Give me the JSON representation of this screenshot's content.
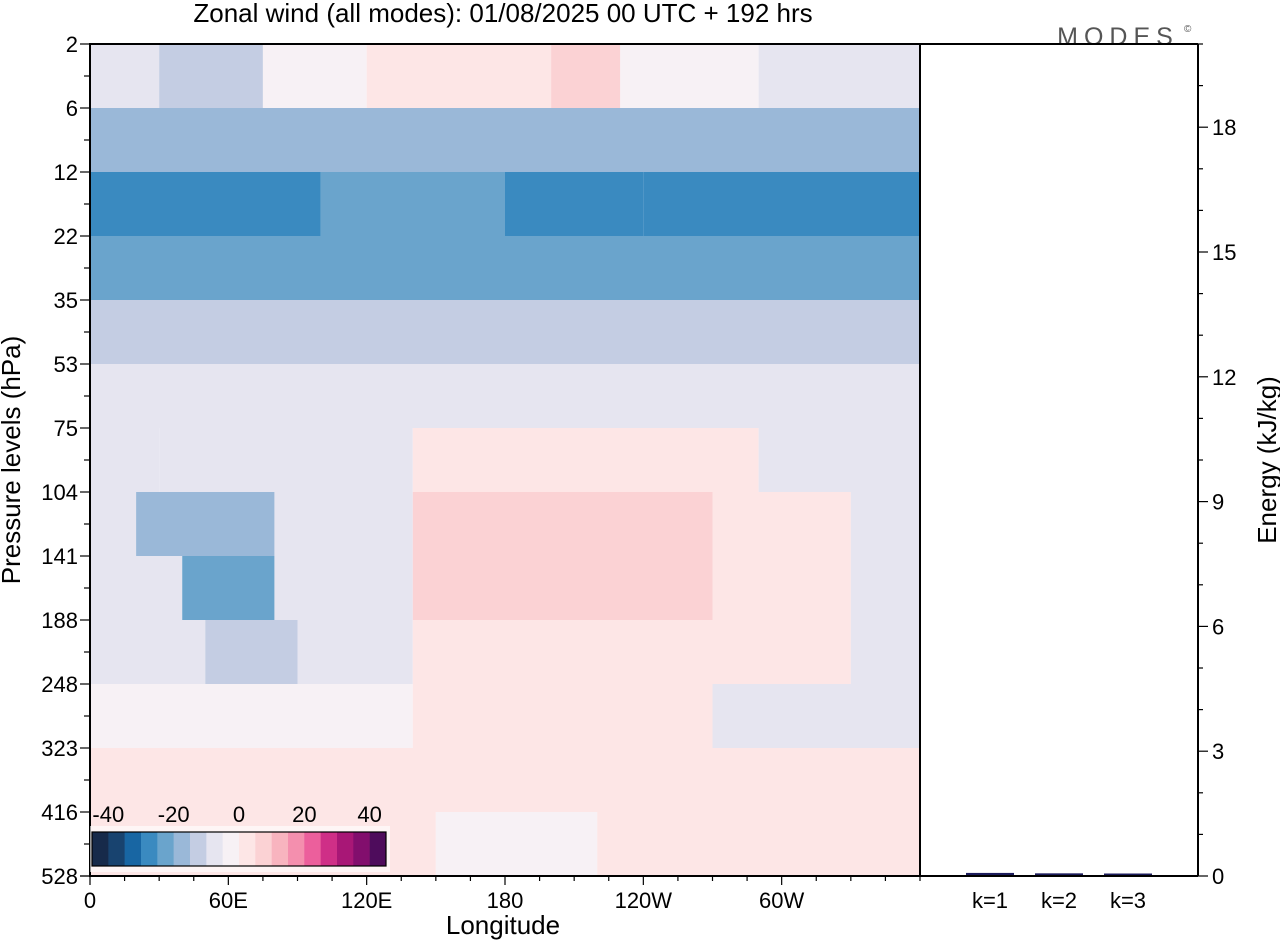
{
  "title": "Zonal wind (all modes):  01/08/2025  00 UTC  + 192 hrs",
  "logo": "MODES",
  "logo_mark": "©",
  "chart_data": [
    {
      "type": "heatmap",
      "xlabel": "Longitude",
      "ylabel": "Pressure levels (hPa)",
      "x_ticks": [
        "0",
        "60E",
        "120E",
        "180",
        "120W",
        "60W"
      ],
      "x_tick_values": [
        0,
        60,
        120,
        180,
        240,
        300
      ],
      "xlim": [
        0,
        360
      ],
      "y_ticks": [
        "2",
        "6",
        "12",
        "22",
        "35",
        "53",
        "75",
        "104",
        "141",
        "188",
        "248",
        "323",
        "416",
        "528"
      ],
      "colorbar": {
        "labels": [
          "-40",
          "-20",
          "0",
          "20",
          "40"
        ],
        "label_values": [
          -40,
          -20,
          0,
          20,
          40
        ],
        "range": [
          -45,
          45
        ],
        "step": 5,
        "colors": [
          "#172a4a",
          "#18436f",
          "#1866a3",
          "#3a8ac0",
          "#6aa4cc",
          "#9ab8d8",
          "#c4cde3",
          "#e6e5f0",
          "#f7f1f5",
          "#fde6e6",
          "#fbd2d4",
          "#f8b4bf",
          "#f48fae",
          "#ec5f9c",
          "#cf2f87",
          "#a81776",
          "#820e6d",
          "#4e0c5c"
        ]
      },
      "cells": [
        {
          "lon": [
            0,
            30
          ],
          "lev": [
            "2",
            "6"
          ],
          "u": -10
        },
        {
          "lon": [
            30,
            75
          ],
          "lev": [
            "2",
            "6"
          ],
          "u": -15
        },
        {
          "lon": [
            75,
            120
          ],
          "lev": [
            "2",
            "6"
          ],
          "u": -5
        },
        {
          "lon": [
            120,
            200
          ],
          "lev": [
            "2",
            "6"
          ],
          "u": 2
        },
        {
          "lon": [
            200,
            230
          ],
          "lev": [
            "2",
            "6"
          ],
          "u": 5
        },
        {
          "lon": [
            230,
            290
          ],
          "lev": [
            "2",
            "6"
          ],
          "u": -5
        },
        {
          "lon": [
            290,
            360
          ],
          "lev": [
            "2",
            "6"
          ],
          "u": -10
        },
        {
          "lon": [
            0,
            360
          ],
          "lev": [
            "6",
            "12"
          ],
          "u": -20
        },
        {
          "lon": [
            0,
            100
          ],
          "lev": [
            "12",
            "22"
          ],
          "u": -30
        },
        {
          "lon": [
            100,
            180
          ],
          "lev": [
            "12",
            "22"
          ],
          "u": -25
        },
        {
          "lon": [
            180,
            240
          ],
          "lev": [
            "12",
            "22"
          ],
          "u": -30
        },
        {
          "lon": [
            240,
            360
          ],
          "lev": [
            "12",
            "22"
          ],
          "u": -28
        },
        {
          "lon": [
            0,
            360
          ],
          "lev": [
            "22",
            "35"
          ],
          "u": -25
        },
        {
          "lon": [
            0,
            360
          ],
          "lev": [
            "35",
            "53"
          ],
          "u": -12
        },
        {
          "lon": [
            0,
            360
          ],
          "lev": [
            "53",
            "75"
          ],
          "u": -6
        },
        {
          "lon": [
            0,
            30
          ],
          "lev": [
            "75",
            "104"
          ],
          "u": -6
        },
        {
          "lon": [
            30,
            90
          ],
          "lev": [
            "75",
            "104"
          ],
          "u": -10
        },
        {
          "lon": [
            90,
            140
          ],
          "lev": [
            "75",
            "104"
          ],
          "u": -6
        },
        {
          "lon": [
            140,
            290
          ],
          "lev": [
            "75",
            "104"
          ],
          "u": 2
        },
        {
          "lon": [
            290,
            360
          ],
          "lev": [
            "75",
            "104"
          ],
          "u": -6
        },
        {
          "lon": [
            0,
            20
          ],
          "lev": [
            "104",
            "141"
          ],
          "u": -8
        },
        {
          "lon": [
            20,
            80
          ],
          "lev": [
            "104",
            "141"
          ],
          "u": -20
        },
        {
          "lon": [
            80,
            140
          ],
          "lev": [
            "104",
            "141"
          ],
          "u": -10
        },
        {
          "lon": [
            140,
            270
          ],
          "lev": [
            "104",
            "141"
          ],
          "u": 6
        },
        {
          "lon": [
            270,
            330
          ],
          "lev": [
            "104",
            "141"
          ],
          "u": 2
        },
        {
          "lon": [
            330,
            360
          ],
          "lev": [
            "104",
            "141"
          ],
          "u": -8
        },
        {
          "lon": [
            0,
            40
          ],
          "lev": [
            "141",
            "188"
          ],
          "u": -6
        },
        {
          "lon": [
            40,
            80
          ],
          "lev": [
            "141",
            "188"
          ],
          "u": -25
        },
        {
          "lon": [
            80,
            140
          ],
          "lev": [
            "141",
            "188"
          ],
          "u": -6
        },
        {
          "lon": [
            140,
            270
          ],
          "lev": [
            "141",
            "188"
          ],
          "u": 6
        },
        {
          "lon": [
            270,
            330
          ],
          "lev": [
            "141",
            "188"
          ],
          "u": 2
        },
        {
          "lon": [
            330,
            360
          ],
          "lev": [
            "141",
            "188"
          ],
          "u": -10
        },
        {
          "lon": [
            0,
            50
          ],
          "lev": [
            "188",
            "248"
          ],
          "u": -6
        },
        {
          "lon": [
            50,
            90
          ],
          "lev": [
            "188",
            "248"
          ],
          "u": -15
        },
        {
          "lon": [
            90,
            140
          ],
          "lev": [
            "188",
            "248"
          ],
          "u": -6
        },
        {
          "lon": [
            140,
            270
          ],
          "lev": [
            "188",
            "248"
          ],
          "u": 4
        },
        {
          "lon": [
            270,
            330
          ],
          "lev": [
            "188",
            "248"
          ],
          "u": 0
        },
        {
          "lon": [
            330,
            360
          ],
          "lev": [
            "188",
            "248"
          ],
          "u": -10
        },
        {
          "lon": [
            0,
            140
          ],
          "lev": [
            "248",
            "323"
          ],
          "u": -4
        },
        {
          "lon": [
            140,
            270
          ],
          "lev": [
            "248",
            "323"
          ],
          "u": 3
        },
        {
          "lon": [
            270,
            360
          ],
          "lev": [
            "248",
            "323"
          ],
          "u": -6
        },
        {
          "lon": [
            0,
            360
          ],
          "lev": [
            "323",
            "416"
          ],
          "u": 0
        },
        {
          "lon": [
            0,
            150
          ],
          "lev": [
            "416",
            "528"
          ],
          "u": 2
        },
        {
          "lon": [
            150,
            220
          ],
          "lev": [
            "416",
            "528"
          ],
          "u": -4
        },
        {
          "lon": [
            220,
            360
          ],
          "lev": [
            "416",
            "528"
          ],
          "u": 1
        }
      ]
    },
    {
      "type": "bar",
      "ylabel": "Energy (kJ/kg)",
      "categories": [
        "k=1",
        "k=2",
        "k=3"
      ],
      "values": [
        0.05,
        0.04,
        0.02
      ],
      "ylim": [
        0,
        20
      ],
      "y_ticks": [
        "0",
        "3",
        "6",
        "9",
        "12",
        "15",
        "18"
      ],
      "y_tick_values": [
        0,
        3,
        6,
        9,
        12,
        15,
        18
      ],
      "bar_color": "#1c1c5c"
    }
  ]
}
